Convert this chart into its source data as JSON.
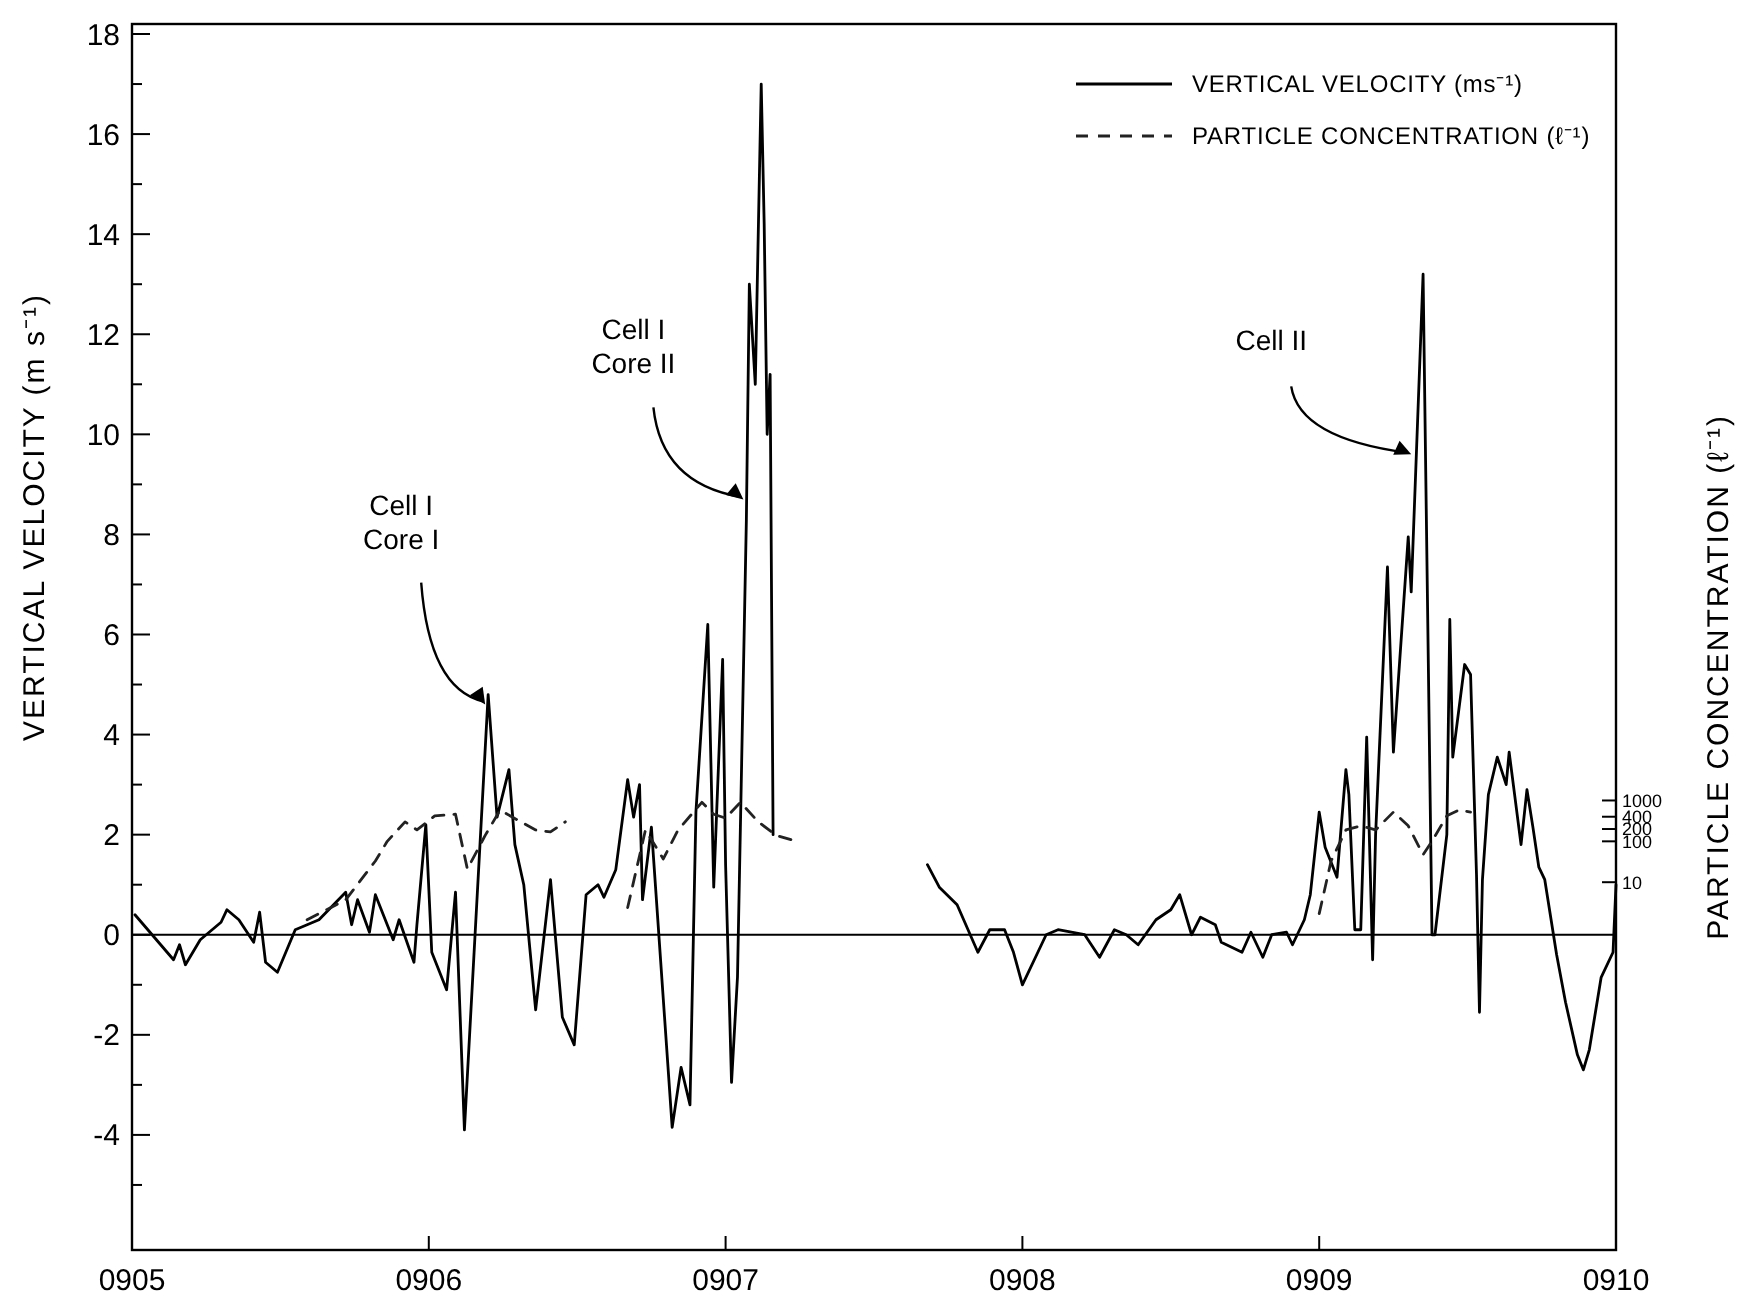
{
  "chart_data": {
    "type": "line",
    "xlabel": null,
    "ylabel": "VERTICAL VELOCITY (m s⁻¹)",
    "y2label": "PARTICLE CONCENTRATION (ℓ⁻¹)",
    "xlim": [
      905,
      910
    ],
    "xticks": [
      {
        "value": 905,
        "label": "0905"
      },
      {
        "value": 906,
        "label": "0906"
      },
      {
        "value": 907,
        "label": "0907"
      },
      {
        "value": 908,
        "label": "0908"
      },
      {
        "value": 909,
        "label": "0909"
      },
      {
        "value": 910,
        "label": "0910"
      }
    ],
    "ylim": [
      -6.3,
      18.2
    ],
    "yticks": [
      {
        "value": -5,
        "label": null
      },
      -4,
      {
        "value": -3,
        "label": null
      },
      -2,
      {
        "value": -1,
        "label": null
      },
      0,
      {
        "value": 1,
        "label": null
      },
      2,
      {
        "value": 3,
        "label": null
      },
      4,
      {
        "value": 5,
        "label": null
      },
      6,
      {
        "value": 7,
        "label": null
      },
      8,
      {
        "value": 9,
        "label": null
      },
      10,
      {
        "value": 11,
        "label": null
      },
      12,
      {
        "value": 13,
        "label": null
      },
      14,
      {
        "value": 15,
        "label": null
      },
      16,
      {
        "value": 17,
        "label": null
      },
      18
    ],
    "y2lim": [
      1e-08,
      1e+22
    ],
    "y2ticks": [
      10,
      100,
      200,
      400,
      1000
    ],
    "log": "y2",
    "grid": false,
    "legend": "top right",
    "ref_lines": [
      {
        "axis": "y",
        "value": 0,
        "color": "#000000",
        "line_style": "solid"
      }
    ],
    "annotations": [
      {
        "text": "Cell I\nCore I",
        "x": 906.19,
        "y": 4.6
      },
      {
        "text": "Cell I\nCore II",
        "x": 907.06,
        "y": 8.7
      },
      {
        "text": "Cell II",
        "x": 909.31,
        "y": 9.6
      }
    ],
    "series": [
      {
        "name": "VERTICAL VELOCITY (ms⁻¹)",
        "color": "#000000",
        "line_style": "solid",
        "axis": "y",
        "x": [
          905.01,
          905.14,
          905.16,
          905.18,
          905.23,
          905.3,
          905.32,
          905.36,
          905.41,
          905.43,
          905.45,
          905.49,
          905.55,
          905.63,
          905.72,
          905.74,
          905.76,
          905.8,
          905.82,
          905.88,
          905.9,
          905.95,
          905.96,
          905.99,
          906.01,
          906.06,
          906.09,
          906.12,
          906.2,
          906.23,
          906.27,
          906.29,
          906.32,
          906.36,
          906.41,
          906.45,
          906.49,
          906.53,
          906.57,
          906.59,
          906.63,
          906.67,
          906.69,
          906.71,
          906.72,
          906.75,
          906.82,
          906.85,
          906.88,
          906.9,
          906.94,
          906.96,
          906.99,
          907.0,
          907.02,
          907.04,
          907.07,
          907.08,
          907.1,
          907.12,
          907.13,
          907.14,
          907.15,
          907.16,
          907.4,
          907.68,
          907.72,
          907.78,
          907.85,
          907.89,
          907.94,
          907.97,
          908.0,
          908.08,
          908.12,
          908.21,
          908.26,
          908.31,
          908.35,
          908.39,
          908.45,
          908.5,
          908.53,
          908.57,
          908.6,
          908.65,
          908.67,
          908.74,
          908.77,
          908.81,
          908.84,
          908.89,
          908.91,
          908.95,
          908.97,
          909.0,
          909.02,
          909.06,
          909.09,
          909.1,
          909.12,
          909.14,
          909.16,
          909.18,
          909.19,
          909.23,
          909.25,
          909.3,
          909.31,
          909.35,
          909.38,
          909.39,
          909.43,
          909.44,
          909.45,
          909.49,
          909.51,
          909.53,
          909.54,
          909.55,
          909.57,
          909.6,
          909.63,
          909.64,
          909.68,
          909.7,
          909.72,
          909.74,
          909.76,
          909.8,
          909.83,
          909.87,
          909.89,
          909.91,
          909.95,
          909.99,
          910.0
        ],
        "values": [
          0.4,
          -0.5,
          -0.2,
          -0.6,
          -0.1,
          0.25,
          0.5,
          0.3,
          -0.15,
          0.45,
          -0.55,
          -0.75,
          0.1,
          0.3,
          0.85,
          0.2,
          0.7,
          0.05,
          0.8,
          -0.1,
          0.3,
          -0.55,
          0.2,
          2.2,
          -0.35,
          -1.1,
          0.85,
          -3.9,
          4.8,
          2.35,
          3.3,
          1.8,
          1.0,
          -1.5,
          1.1,
          -1.65,
          -2.2,
          0.8,
          1.0,
          0.75,
          1.3,
          3.1,
          2.35,
          3.0,
          0.7,
          2.15,
          -3.85,
          -2.65,
          -3.4,
          2.45,
          6.2,
          0.95,
          5.5,
          1.4,
          -2.95,
          -0.85,
          8.3,
          13.0,
          11.0,
          17.0,
          14.2,
          10.0,
          11.2,
          2.0,
          null,
          1.4,
          0.95,
          0.6,
          -0.35,
          0.1,
          0.1,
          -0.35,
          -1.0,
          0,
          0.1,
          0,
          -0.45,
          0.1,
          0,
          -0.2,
          0.3,
          0.5,
          0.8,
          0,
          0.35,
          0.2,
          -0.15,
          -0.35,
          0.05,
          -0.45,
          0,
          0.05,
          -0.2,
          0.3,
          0.8,
          2.45,
          1.75,
          1.15,
          3.3,
          2.8,
          0.1,
          0.1,
          3.95,
          -0.5,
          2.0,
          7.35,
          3.65,
          7.95,
          6.85,
          13.2,
          0,
          0,
          2.0,
          6.3,
          3.55,
          5.4,
          5.2,
          1.2,
          -1.55,
          1.1,
          2.8,
          3.55,
          3.0,
          3.65,
          1.8,
          2.9,
          2.15,
          1.35,
          1.1,
          -0.4,
          -1.35,
          -2.4,
          -2.7,
          -2.3,
          -0.85,
          -0.35,
          1.0
        ]
      },
      {
        "name": "PARTICLE CONCENTRATION (ℓ⁻¹)",
        "color": "#222222",
        "line_style": "dashed",
        "axis": "y2",
        "x": [
          905.59,
          905.72,
          905.82,
          905.86,
          905.92,
          905.96,
          906.02,
          906.09,
          906.13,
          906.19,
          906.24,
          906.31,
          906.36,
          906.41,
          906.46,
          906.55,
          906.67,
          906.73,
          906.79,
          906.84,
          906.92,
          906.96,
          907.0,
          907.05,
          907.11,
          907.17,
          907.22,
          908.5,
          909.0,
          909.04,
          909.09,
          909.14,
          909.19,
          909.25,
          909.3,
          909.35,
          909.38,
          909.43,
          909.47,
          909.51
        ],
        "values": [
          1.2,
          3.7,
          33,
          100,
          300,
          190,
          420,
          460,
          21,
          140,
          580,
          300,
          190,
          170,
          300,
          null,
          2.4,
          190,
          37,
          190,
          900,
          460,
          370,
          900,
          300,
          140,
          110,
          null,
          1.7,
          33,
          190,
          240,
          190,
          520,
          240,
          47,
          100,
          420,
          580,
          520
        ]
      }
    ]
  }
}
